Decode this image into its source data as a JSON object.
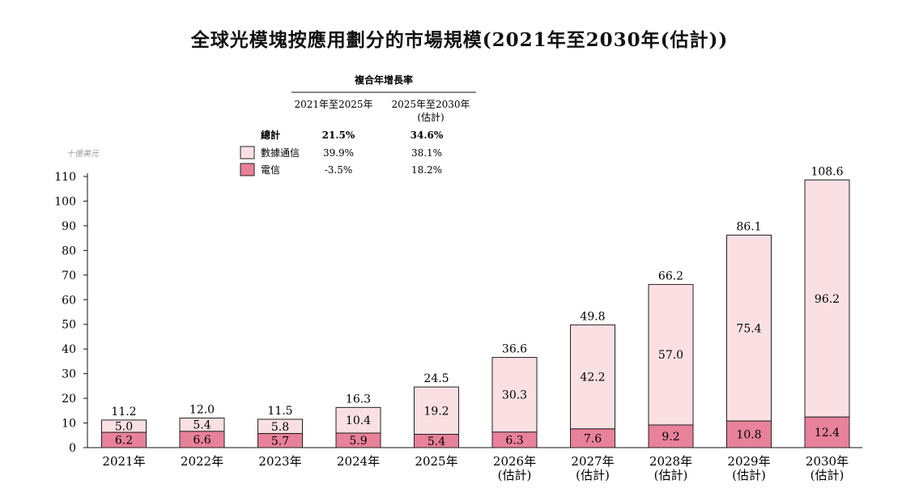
{
  "title": "全球光模塊按應用劃分的市場規模(2021年至2030年(估計))",
  "unit_label": "十億美元",
  "cagr_table": {
    "header": "複合年增長率",
    "period_1": "2021年至2025年",
    "period_2_line1": "2025年至2030年",
    "period_2_line2": "(估計)",
    "rows": [
      {
        "label": "總計",
        "v1": "21.5%",
        "v2": "34.6%"
      },
      {
        "label": "數據通信",
        "v1": "39.9%",
        "v2": "38.1%"
      },
      {
        "label": "電信",
        "v1": "-3.5%",
        "v2": "18.2%"
      }
    ]
  },
  "colors": {
    "datacom": "#fbe0e3",
    "telecom": "#e8819a",
    "border": "#222222"
  },
  "chart_data": {
    "type": "bar",
    "stacked": true,
    "title": "全球光模塊按應用劃分的市場規模(2021年至2030年(估計))",
    "ylabel": "十億美元",
    "ylim": [
      0,
      110
    ],
    "yticks": [
      0,
      10,
      20,
      30,
      40,
      50,
      60,
      70,
      80,
      90,
      100,
      110
    ],
    "grid": false,
    "legend_position": "top-left",
    "categories": [
      [
        "2021年"
      ],
      [
        "2022年"
      ],
      [
        "2023年"
      ],
      [
        "2024年"
      ],
      [
        "2025年"
      ],
      [
        "2026年",
        "(估計)"
      ],
      [
        "2027年",
        "(估計)"
      ],
      [
        "2028年",
        "(估計)"
      ],
      [
        "2029年",
        "(估計)"
      ],
      [
        "2030年",
        "(估計)"
      ]
    ],
    "series": [
      {
        "name": "電信",
        "values": [
          6.2,
          6.6,
          5.7,
          5.9,
          5.4,
          6.3,
          7.6,
          9.2,
          10.8,
          12.4
        ]
      },
      {
        "name": "數據通信",
        "values": [
          5.0,
          5.4,
          5.8,
          10.4,
          19.2,
          30.3,
          42.2,
          57.0,
          75.4,
          96.2
        ]
      }
    ],
    "totals": [
      11.2,
      12.0,
      11.5,
      16.3,
      24.5,
      36.6,
      49.8,
      66.2,
      86.1,
      108.6
    ]
  }
}
